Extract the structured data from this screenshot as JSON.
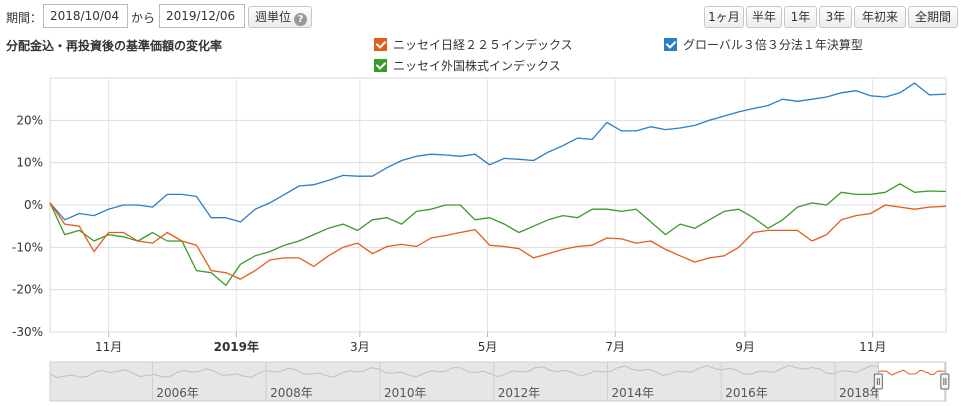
{
  "period": {
    "label": "期間：",
    "from": "2018/10/04",
    "separator": "から",
    "to": "2019/12/06",
    "weekly_label": "週単位",
    "help_icon": "?"
  },
  "range_buttons": [
    "1ヶ月",
    "半年",
    "1年",
    "3年",
    "年初来",
    "全期間"
  ],
  "chart_data": {
    "type": "line",
    "title": "分配金込・再投資後の基準価額の変化率",
    "ylim": [
      -30,
      30
    ],
    "yticks": [
      "20%",
      "10%",
      "0%",
      "-10%",
      "-20%",
      "-30%"
    ],
    "ytick_values": [
      20,
      10,
      0,
      -10,
      -20,
      -30
    ],
    "xtick_labels": [
      "11月",
      "2019年",
      "3月",
      "5月",
      "7月",
      "9月",
      "11月"
    ],
    "xtick_bold": [
      false,
      true,
      false,
      false,
      false,
      false,
      false
    ],
    "x_start": "2018-10-04",
    "x_end": "2019-12-06",
    "xtick_dates": [
      "2018-11-01",
      "2019-01-01",
      "2019-03-01",
      "2019-05-01",
      "2019-07-01",
      "2019-09-01",
      "2019-11-01"
    ],
    "grid": true,
    "legend_placement": "top",
    "series": [
      {
        "name": "ニッセイ日経２２５インデックス",
        "color": "#e55b1c",
        "x": [
          "2018-10-04",
          "2018-10-11",
          "2018-10-18",
          "2018-10-25",
          "2018-11-01",
          "2018-11-08",
          "2018-11-15",
          "2018-11-22",
          "2018-11-29",
          "2018-12-06",
          "2018-12-13",
          "2018-12-20",
          "2018-12-27",
          "2019-01-03",
          "2019-01-10",
          "2019-01-17",
          "2019-01-24",
          "2019-01-31",
          "2019-02-07",
          "2019-02-14",
          "2019-02-21",
          "2019-02-28",
          "2019-03-07",
          "2019-03-14",
          "2019-03-21",
          "2019-03-28",
          "2019-04-04",
          "2019-04-11",
          "2019-04-18",
          "2019-04-25",
          "2019-05-02",
          "2019-05-09",
          "2019-05-16",
          "2019-05-23",
          "2019-05-30",
          "2019-06-06",
          "2019-06-13",
          "2019-06-20",
          "2019-06-27",
          "2019-07-04",
          "2019-07-11",
          "2019-07-18",
          "2019-07-25",
          "2019-08-01",
          "2019-08-08",
          "2019-08-15",
          "2019-08-22",
          "2019-08-29",
          "2019-09-05",
          "2019-09-12",
          "2019-09-19",
          "2019-09-26",
          "2019-10-03",
          "2019-10-10",
          "2019-10-17",
          "2019-10-24",
          "2019-10-31",
          "2019-11-07",
          "2019-11-14",
          "2019-11-21",
          "2019-11-28",
          "2019-12-06"
        ],
        "values": [
          0.5,
          -4.5,
          -5.0,
          -11.0,
          -6.5,
          -6.5,
          -8.5,
          -9.0,
          -6.5,
          -8.5,
          -9.5,
          -15.5,
          -16.0,
          -17.5,
          -15.5,
          -13.0,
          -12.5,
          -12.5,
          -14.5,
          -12.0,
          -10.0,
          -9.0,
          -11.5,
          -9.8,
          -9.3,
          -9.8,
          -7.8,
          -7.2,
          -6.5,
          -5.8,
          -9.5,
          -9.8,
          -10.3,
          -12.5,
          -11.5,
          -10.5,
          -9.8,
          -9.5,
          -7.8,
          -8.0,
          -9.0,
          -8.5,
          -10.5,
          -12.0,
          -13.5,
          -12.5,
          -12.0,
          -10.0,
          -6.5,
          -6.0,
          -6.0,
          -6.0,
          -8.5,
          -7.0,
          -3.5,
          -2.5,
          -2.0,
          0.0,
          -0.5,
          -1.0,
          -0.5,
          -0.3
        ]
      },
      {
        "name": "グローバル３倍３分法１年決算型",
        "color": "#2b7fc4",
        "x": [
          "2018-10-04",
          "2018-10-11",
          "2018-10-18",
          "2018-10-25",
          "2018-11-01",
          "2018-11-08",
          "2018-11-15",
          "2018-11-22",
          "2018-11-29",
          "2018-12-06",
          "2018-12-13",
          "2018-12-20",
          "2018-12-27",
          "2019-01-03",
          "2019-01-10",
          "2019-01-17",
          "2019-01-24",
          "2019-01-31",
          "2019-02-07",
          "2019-02-14",
          "2019-02-21",
          "2019-02-28",
          "2019-03-07",
          "2019-03-14",
          "2019-03-21",
          "2019-03-28",
          "2019-04-04",
          "2019-04-11",
          "2019-04-18",
          "2019-04-25",
          "2019-05-02",
          "2019-05-09",
          "2019-05-16",
          "2019-05-23",
          "2019-05-30",
          "2019-06-06",
          "2019-06-13",
          "2019-06-20",
          "2019-06-27",
          "2019-07-04",
          "2019-07-11",
          "2019-07-18",
          "2019-07-25",
          "2019-08-01",
          "2019-08-08",
          "2019-08-15",
          "2019-08-22",
          "2019-08-29",
          "2019-09-05",
          "2019-09-12",
          "2019-09-19",
          "2019-09-26",
          "2019-10-03",
          "2019-10-10",
          "2019-10-17",
          "2019-10-24",
          "2019-10-31",
          "2019-11-07",
          "2019-11-14",
          "2019-11-21",
          "2019-11-28",
          "2019-12-06"
        ],
        "values": [
          0.5,
          -3.5,
          -2.0,
          -2.5,
          -1.0,
          0.0,
          0.0,
          -0.5,
          2.5,
          2.5,
          2.0,
          -3.0,
          -3.0,
          -4.0,
          -1.0,
          0.5,
          2.5,
          4.5,
          4.8,
          5.8,
          7.0,
          6.8,
          6.8,
          8.8,
          10.5,
          11.5,
          12.0,
          11.8,
          11.5,
          12.0,
          9.5,
          11.0,
          10.8,
          10.5,
          12.5,
          14.0,
          15.8,
          15.5,
          19.5,
          17.5,
          17.5,
          18.5,
          17.8,
          18.2,
          18.8,
          20.0,
          21.0,
          22.0,
          22.8,
          23.5,
          25.0,
          24.5,
          25.0,
          25.5,
          26.5,
          27.0,
          25.8,
          25.5,
          26.5,
          28.8,
          26.0,
          26.2
        ]
      },
      {
        "name": "ニッセイ外国株式インデックス",
        "color": "#3a9a2a",
        "x": [
          "2018-10-04",
          "2018-10-11",
          "2018-10-18",
          "2018-10-25",
          "2018-11-01",
          "2018-11-08",
          "2018-11-15",
          "2018-11-22",
          "2018-11-29",
          "2018-12-06",
          "2018-12-13",
          "2018-12-20",
          "2018-12-27",
          "2019-01-03",
          "2019-01-10",
          "2019-01-17",
          "2019-01-24",
          "2019-01-31",
          "2019-02-07",
          "2019-02-14",
          "2019-02-21",
          "2019-02-28",
          "2019-03-07",
          "2019-03-14",
          "2019-03-21",
          "2019-03-28",
          "2019-04-04",
          "2019-04-11",
          "2019-04-18",
          "2019-04-25",
          "2019-05-02",
          "2019-05-09",
          "2019-05-16",
          "2019-05-23",
          "2019-05-30",
          "2019-06-06",
          "2019-06-13",
          "2019-06-20",
          "2019-06-27",
          "2019-07-04",
          "2019-07-11",
          "2019-07-18",
          "2019-07-25",
          "2019-08-01",
          "2019-08-08",
          "2019-08-15",
          "2019-08-22",
          "2019-08-29",
          "2019-09-05",
          "2019-09-12",
          "2019-09-19",
          "2019-09-26",
          "2019-10-03",
          "2019-10-10",
          "2019-10-17",
          "2019-10-24",
          "2019-10-31",
          "2019-11-07",
          "2019-11-14",
          "2019-11-21",
          "2019-11-28",
          "2019-12-06"
        ],
        "values": [
          0.5,
          -7.0,
          -6.0,
          -8.5,
          -7.0,
          -7.5,
          -8.5,
          -6.5,
          -8.5,
          -8.5,
          -15.5,
          -16.0,
          -19.0,
          -14.0,
          -12.0,
          -11.0,
          -9.5,
          -8.5,
          -7.0,
          -5.5,
          -4.5,
          -6.0,
          -3.5,
          -3.0,
          -4.5,
          -1.5,
          -1.0,
          0.0,
          0.0,
          -3.5,
          -3.0,
          -4.5,
          -6.5,
          -5.0,
          -3.5,
          -2.5,
          -3.0,
          -1.0,
          -1.0,
          -1.5,
          -1.0,
          -4.0,
          -7.0,
          -4.5,
          -5.5,
          -3.5,
          -1.5,
          -1.0,
          -3.0,
          -5.5,
          -3.5,
          -0.5,
          0.5,
          0.0,
          3.0,
          2.5,
          2.5,
          3.0,
          5.0,
          3.0,
          3.3,
          3.2
        ]
      }
    ]
  },
  "navigator": {
    "year_labels": [
      "2006年",
      "2008年",
      "2010年",
      "2012年",
      "2014年",
      "2016年",
      "2018年"
    ],
    "year_values": [
      2006,
      2008,
      2010,
      2012,
      2014,
      2016,
      2018
    ],
    "start_year": 2004.2,
    "end_year": 2019.95,
    "selection": [
      "2018.76",
      "2019.93"
    ],
    "selection_from": 2018.76,
    "selection_to": 2019.93
  }
}
